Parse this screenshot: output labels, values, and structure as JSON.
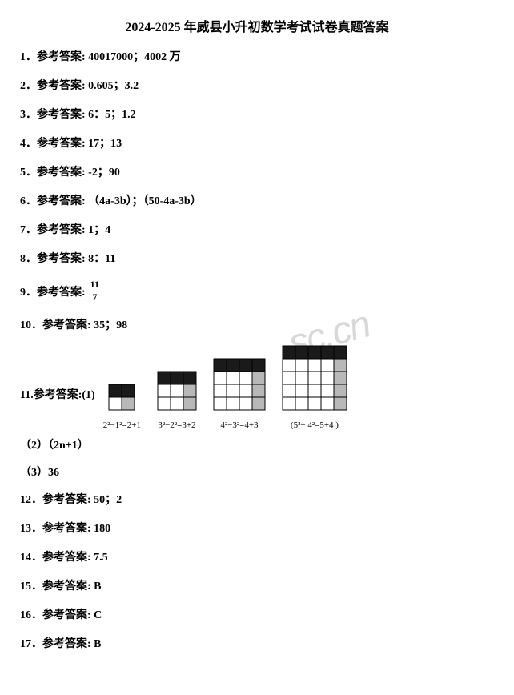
{
  "title": "2024-2025 年威县小升初数学考试试卷真题答案",
  "label_prefix": "参考答案:",
  "answers": {
    "q1": "1．参考答案: 40017000；4002 万",
    "q2": "2．参考答案: 0.605；3.2",
    "q3": "3．参考答案: 6：5；1.2",
    "q4": "4．参考答案: 17；13",
    "q5": "5．参考答案: -2；90",
    "q6": "6．参考答案: （4a-3b）；（50-4a-3b）",
    "q7": "7．参考答案: 1；4",
    "q8": "8．参考答案: 8：11",
    "q9_label": "9．参考答案:",
    "q9_num": "11",
    "q9_den": "7",
    "q10": "10．参考答案: 35；98",
    "q11_label": "11.参考答案:(1)",
    "q11_sub2": "（2）（2n+1）",
    "q11_sub3": "（3）36",
    "q12": "12．参考答案: 50；2",
    "q13": "13．参考答案: 180",
    "q14": "14．参考答案: 7.5",
    "q15": "15．参考答案: B",
    "q16": "16．参考答案: C",
    "q17": "17．参考答案: B"
  },
  "watermark": "sc.cn",
  "grids": [
    {
      "cols": 2,
      "rows": 2,
      "cell": 16,
      "filled": [
        [
          0,
          0
        ],
        [
          0,
          1
        ]
      ],
      "gray": [
        [
          1,
          1
        ]
      ],
      "caption": "2²−1²=2+1"
    },
    {
      "cols": 3,
      "rows": 3,
      "cell": 16,
      "filled": [
        [
          0,
          0
        ],
        [
          0,
          1
        ],
        [
          0,
          2
        ]
      ],
      "gray": [
        [
          1,
          2
        ],
        [
          2,
          2
        ]
      ],
      "caption": "3²−2²=3+2"
    },
    {
      "cols": 4,
      "rows": 4,
      "cell": 16,
      "filled": [
        [
          0,
          0
        ],
        [
          0,
          1
        ],
        [
          0,
          2
        ],
        [
          0,
          3
        ]
      ],
      "gray": [
        [
          1,
          3
        ],
        [
          2,
          3
        ],
        [
          3,
          3
        ]
      ],
      "caption": "4²−3²=4+3"
    },
    {
      "cols": 5,
      "rows": 5,
      "cell": 16,
      "filled": [
        [
          0,
          0
        ],
        [
          0,
          1
        ],
        [
          0,
          2
        ],
        [
          0,
          3
        ],
        [
          0,
          4
        ]
      ],
      "gray": [
        [
          1,
          4
        ],
        [
          2,
          4
        ],
        [
          3,
          4
        ],
        [
          4,
          4
        ]
      ],
      "caption": "(5²− 4²=5+4    )"
    }
  ],
  "colors": {
    "black": "#1a1a1a",
    "gray": "#b8b8b8",
    "stroke": "#000000",
    "bg": "#ffffff"
  }
}
